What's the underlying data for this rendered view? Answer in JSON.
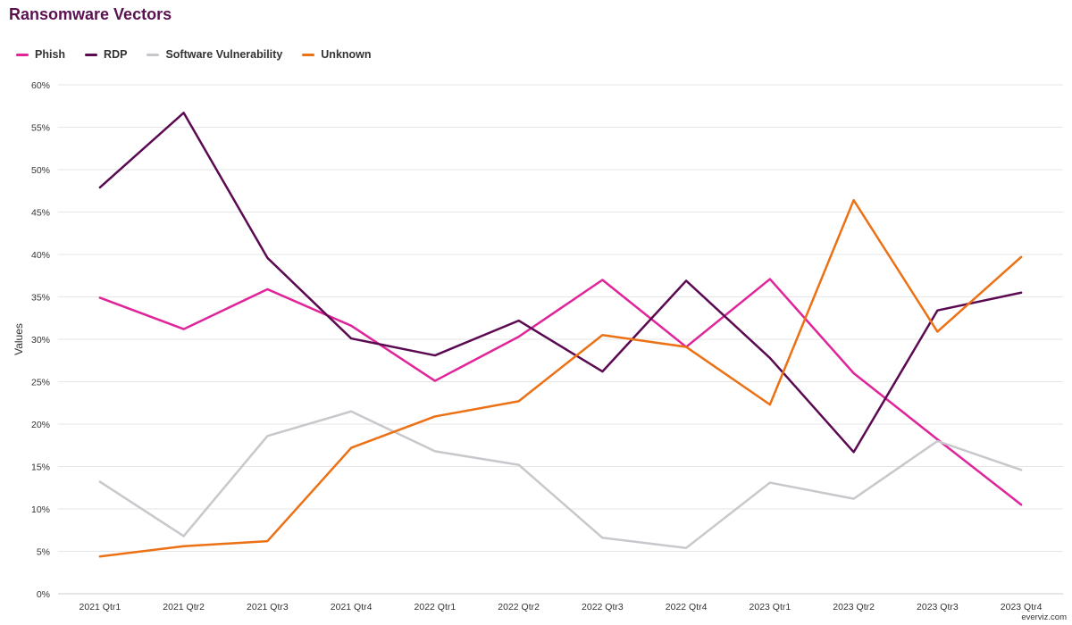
{
  "chart_data": {
    "type": "line",
    "title": "Ransomware Vectors",
    "xlabel": "",
    "ylabel": "Values",
    "ylim": [
      0,
      60
    ],
    "yticks": [
      0,
      5,
      10,
      15,
      20,
      25,
      30,
      35,
      40,
      45,
      50,
      55,
      60
    ],
    "y_tick_suffix": "%",
    "grid": "horizontal",
    "legend_position": "top-left",
    "categories": [
      "2021 Qtr1",
      "2021 Qtr2",
      "2021 Qtr3",
      "2021 Qtr4",
      "2022 Qtr1",
      "2022 Qtr2",
      "2022 Qtr3",
      "2022 Qtr4",
      "2023 Qtr1",
      "2023 Qtr2",
      "2023 Qtr3",
      "2023 Qtr4"
    ],
    "series": [
      {
        "name": "Phish",
        "color": "#e0249a",
        "values": [
          34.9,
          31.2,
          35.9,
          31.6,
          25.1,
          30.3,
          37.0,
          29.1,
          37.1,
          26.0,
          18.2,
          10.5
        ]
      },
      {
        "name": "RDP",
        "color": "#5b0a52",
        "values": [
          47.9,
          56.7,
          39.6,
          30.1,
          28.1,
          32.2,
          26.2,
          36.9,
          27.8,
          16.7,
          33.4,
          35.5
        ]
      },
      {
        "name": "Software Vulnerability",
        "color": "#c8c8cc",
        "values": [
          13.2,
          6.8,
          18.6,
          21.5,
          16.8,
          15.2,
          6.6,
          5.4,
          13.1,
          11.2,
          18.0,
          14.6
        ]
      },
      {
        "name": "Unknown",
        "color": "#ec7014",
        "values": [
          4.4,
          5.6,
          6.2,
          17.2,
          20.9,
          22.7,
          30.5,
          29.1,
          22.3,
          46.4,
          30.9,
          39.7
        ]
      }
    ]
  },
  "credit": "everviz.com"
}
